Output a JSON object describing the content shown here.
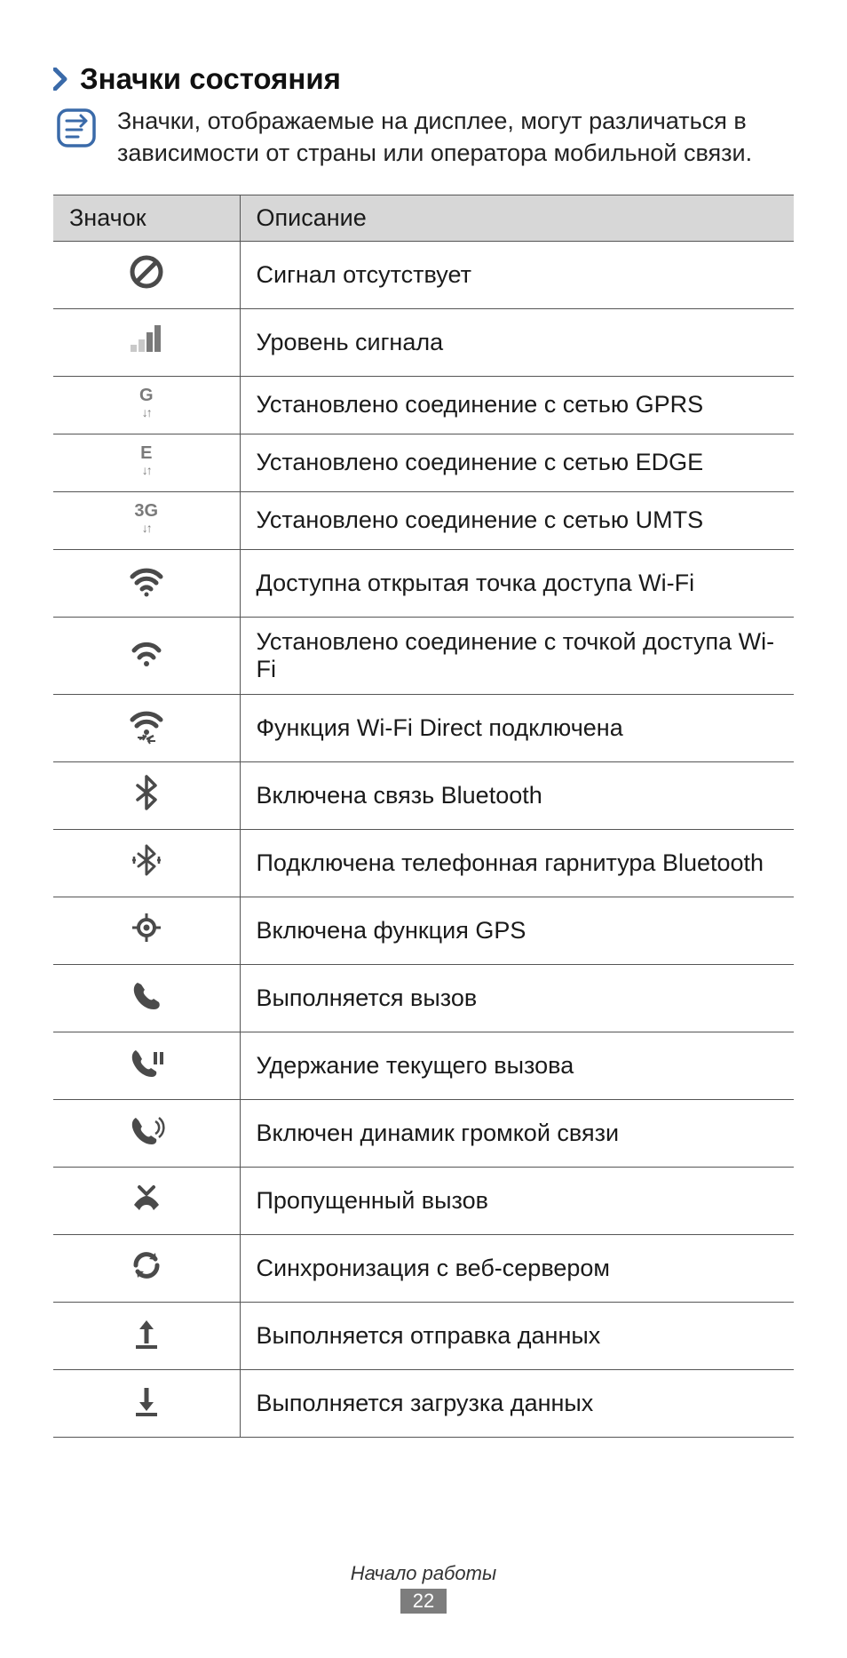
{
  "colors": {
    "accent": "#3a6aa9",
    "icon_gray": "#7a7a7a",
    "icon_dark": "#4a4a4a",
    "header_bg": "#d7d7d7",
    "border": "#555555",
    "text": "#1a1a1a",
    "footer_bg": "#7d7d7d"
  },
  "section": {
    "title": "Значки состояния"
  },
  "note": {
    "text": "Значки, отображаемые на дисплее, могут различаться в зависимости от страны или оператора мобильной связи."
  },
  "table": {
    "header_icon": "Значок",
    "header_desc": "Описание",
    "rows": [
      {
        "icon": "no-signal",
        "desc": "Сигнал отсутствует"
      },
      {
        "icon": "signal-bars",
        "desc": "Уровень сигнала"
      },
      {
        "icon": "gprs",
        "desc": "Установлено соединение с сетью GPRS"
      },
      {
        "icon": "edge",
        "desc": "Установлено соединение с сетью EDGE"
      },
      {
        "icon": "umts",
        "desc": "Установлено соединение с сетью UMTS"
      },
      {
        "icon": "wifi-open",
        "desc": "Доступна открытая точка доступа Wi-Fi"
      },
      {
        "icon": "wifi-connected",
        "desc": "Установлено соединение с точкой доступа Wi-Fi"
      },
      {
        "icon": "wifi-direct",
        "desc": "Функция Wi-Fi Direct подключена"
      },
      {
        "icon": "bluetooth",
        "desc": "Включена связь Bluetooth"
      },
      {
        "icon": "bt-headset",
        "desc": "Подключена телефонная гарнитура Bluetooth"
      },
      {
        "icon": "gps",
        "desc": "Включена функция GPS"
      },
      {
        "icon": "call-active",
        "desc": "Выполняется вызов"
      },
      {
        "icon": "call-hold",
        "desc": "Удержание текущего вызова"
      },
      {
        "icon": "speaker",
        "desc": "Включен динамик громкой связи"
      },
      {
        "icon": "missed-call",
        "desc": "Пропущенный вызов"
      },
      {
        "icon": "sync",
        "desc": "Синхронизация с веб-сервером"
      },
      {
        "icon": "upload",
        "desc": "Выполняется отправка данных"
      },
      {
        "icon": "download",
        "desc": "Выполняется загрузка данных"
      }
    ]
  },
  "footer": {
    "section_name": "Начало работы",
    "page_number": "22"
  }
}
